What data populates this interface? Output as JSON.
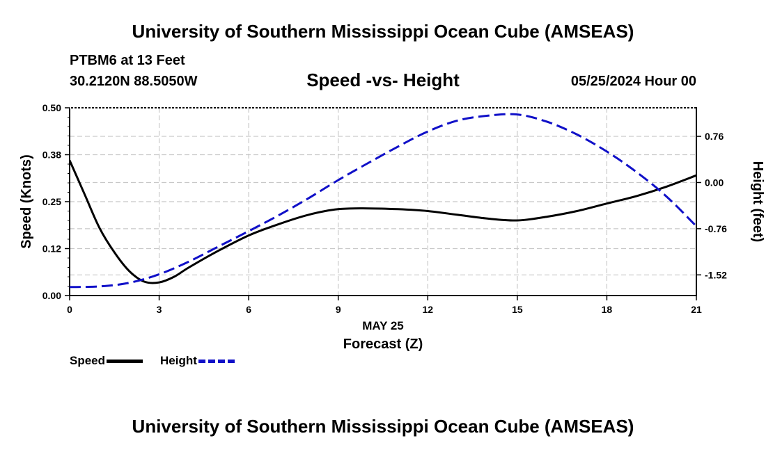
{
  "header": {
    "title": "University of Southern Mississippi Ocean Cube (AMSEAS)",
    "station": "PTBM6 at 13 Feet",
    "coords": "30.2120N  88.5050W",
    "subtitle": "Speed -vs- Height",
    "datetime": "05/25/2024 Hour 00"
  },
  "footer": {
    "title": "University of Southern Mississippi Ocean Cube (AMSEAS)"
  },
  "legend": {
    "speed_label": "Speed",
    "height_label": "Height"
  },
  "chart_data": {
    "type": "line",
    "title": "Speed -vs- Height",
    "xlabel": "Forecast (Z)",
    "xsublabel": "MAY 25",
    "ylabel": "Speed (Knots)",
    "y2label": "Height (feet)",
    "xlim": [
      0,
      21
    ],
    "ylim": [
      0,
      0.5
    ],
    "y2lim": [
      -1.86,
      1.23
    ],
    "xticks": [
      0,
      3,
      6,
      9,
      12,
      15,
      18,
      21
    ],
    "yticks": [
      0.0,
      0.125,
      0.25,
      0.375,
      0.5
    ],
    "ytick_labels": [
      "0.00",
      "0.12",
      "0.25",
      "0.38",
      "0.50"
    ],
    "y2ticks": [
      -1.52,
      -0.76,
      0.0,
      0.76
    ],
    "y2tick_labels": [
      "-1.52",
      "-0.76",
      "0.00",
      "0.76"
    ],
    "grid": true,
    "series": [
      {
        "name": "Speed",
        "axis": "left",
        "color": "#000000",
        "style": "solid",
        "x": [
          0,
          0.5,
          1,
          1.5,
          2,
          2.5,
          3,
          3.5,
          4,
          5,
          6,
          7,
          8,
          9,
          10,
          11,
          12,
          13,
          14,
          15,
          16,
          17,
          18,
          19,
          20,
          21
        ],
        "y": [
          0.36,
          0.27,
          0.18,
          0.115,
          0.065,
          0.037,
          0.035,
          0.05,
          0.075,
          0.12,
          0.16,
          0.19,
          0.215,
          0.23,
          0.232,
          0.23,
          0.225,
          0.215,
          0.205,
          0.2,
          0.21,
          0.225,
          0.245,
          0.265,
          0.29,
          0.32
        ]
      },
      {
        "name": "Height",
        "axis": "right",
        "color": "#1010c8",
        "style": "dashed",
        "x": [
          0,
          1,
          2,
          3,
          4,
          5,
          6,
          7,
          8,
          9,
          10,
          11,
          12,
          13,
          14,
          15,
          16,
          17,
          18,
          19,
          20,
          21
        ],
        "y": [
          -1.72,
          -1.71,
          -1.65,
          -1.51,
          -1.3,
          -1.05,
          -0.8,
          -0.54,
          -0.26,
          0.04,
          0.32,
          0.59,
          0.84,
          1.02,
          1.1,
          1.12,
          1.0,
          0.79,
          0.51,
          0.17,
          -0.23,
          -0.72
        ]
      }
    ]
  }
}
